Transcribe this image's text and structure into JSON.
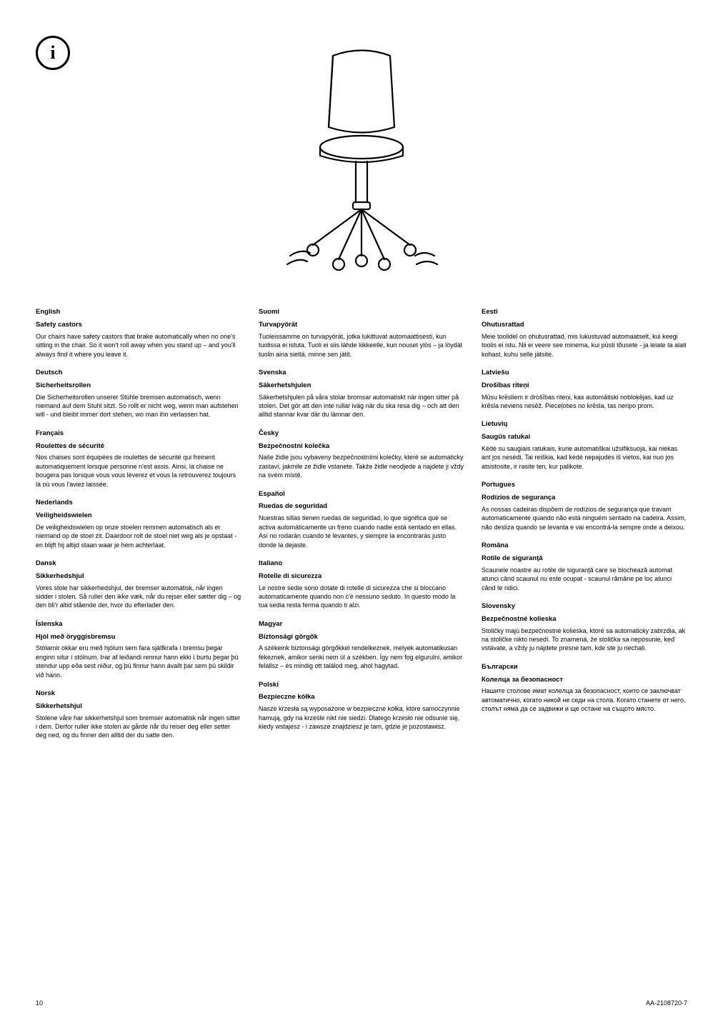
{
  "info_icon_glyph": "i",
  "footer": {
    "page": "10",
    "code": "AA-2108720-7"
  },
  "columns": [
    [
      {
        "lang": "English",
        "heading": "Safety castors",
        "text": "Our chairs have safety castors that brake automatically when no one's sitting in the chair. So it won't roll away when you stand up – and you'll always find it where you leave it."
      },
      {
        "lang": "Deutsch",
        "heading": "Sicherheitsrollen",
        "text": "Die Sicherheitsrollen unserer Stühle bremsen automatisch, wenn niemand auf dem Stuhl sitzt. So rollt er nicht weg, wenn man aufstehen will - und bleibt immer dort stehen, wo man ihn verlassen hat."
      },
      {
        "lang": "Français",
        "heading": "Roulettes de sécurité",
        "text": "Nos chaises sont équipées de roulettes de sécurité qui freinent automatiquement lorsque personne n'est assis. Ainsi, la chaise ne bougera pas lorsque vous vous lèverez et vous la retrouverez toujours là où vous l'aviez laissée."
      },
      {
        "lang": "Nederlands",
        "heading": "Veiligheidswielen",
        "text": "De veiligheidswielen op onze stoelen remmen automatisch als er niemand op de stoel zit. Daardoor rolt de stoel niet weg als je opstaat - en blijft hij altijd staan waar je hem achterlaat."
      },
      {
        "lang": "Dansk",
        "heading": "Sikkerhedshjul",
        "text": "Vores stole har sikkerhedshjul, der bremser automatisk, når ingen sidder i stolen. Så ruller den ikke væk, når du rejser eller sætter dig – og den bli'r altid stående der, hvor du efterlader den."
      },
      {
        "lang": "Íslenska",
        "heading": "Hjól með öryggisbremsu",
        "text": "Stólarnir okkar eru með hjólum sem fara sjálfkrafa í bremsu þegar enginn situr í stólnum. Þar af leiðandi rennur hann ekki í burtu þegar þú stendur upp eða sest niður, og þú finnur hann ávallt þar sem þú skildir við hann."
      },
      {
        "lang": "Norsk",
        "heading": "Sikkerhetshjul",
        "text": "Stolene våre har sikkerhetshjul som bremser automatisk når ingen sitter i dem. Derfor ruller ikke stolen av gårde når du reiser deg eller setter deg ned, og du finner den alltid der du satte den."
      }
    ],
    [
      {
        "lang": "Suomi",
        "heading": "Turvapyörät",
        "text": "Tuoleissamme on turvapyörät, jotka lukittuvat automaattisesti, kun tuolissa ei istuta. Tuoli ei siis lähde liikkeelle, kun nouset ylös – ja löydät tuolin aina sieltä, minne sen jätit."
      },
      {
        "lang": "Svenska",
        "heading": "Säkerhetshjulen",
        "text": "Säkerhetshjulen på våra stolar bromsar automatiskt när ingen sitter på stolen. Det gör att den inte rullar iväg när du ska resa dig – och att den alltid stannar kvar där du lämnar den."
      },
      {
        "lang": "Česky",
        "heading": "Bezpečnostní kolečka",
        "text": "Naše židle jsou vybaveny bezpečnostními kolečky, které se automaticky zastaví, jakmile ze židle vstanete. Takže židle neodjede a najdete ji vždy na svém místě."
      },
      {
        "lang": "Español",
        "heading": "Ruedas de seguridad",
        "text": "Nuestras sillas tienen ruedas de seguridad, lo que significa que se activa automáticamente un freno cuando nadie está sentado en ellas. Así no rodarán cuando te levantes, y siempre la encontrarás justo donde la dejaste."
      },
      {
        "lang": "Italiano",
        "heading": "Rotelle di sicurezza",
        "text": "Le nostre sedie sono dotate di rotelle di sicurezza che si bloccano automaticamente quando non c'è nessuno seduto. In questo modo la tua sedia resta ferma quando ti alzi."
      },
      {
        "lang": "Magyar",
        "heading": "Biztonsági görgők",
        "text": "A székeink biztonsági görgőkkel rendelkeznek, melyek automatikusan fékeznek, amikor senki nem ül a székben. Így nem fog elgurulni, amikor felállsz – és mindig ott találod meg, ahol hagytad."
      },
      {
        "lang": "Polski",
        "heading": "Bezpieczne kółka",
        "text": "Nasze krzesła są wyposażone w bezpieczne kółka, które samoczynnie hamują, gdy na krześle nikt nie siedzi. Dlatego krzesło nie odsunie się, kiedy wstajesz - i zawsze znajdziesz je tam, gdzie je pozostawisz."
      }
    ],
    [
      {
        "lang": "Eesti",
        "heading": "Ohutusrattad",
        "text": "Meie toolidel on ohutusrattad, mis lukustuvad automaatselt, kui keegi toolis ei istu. Nii ei veere see minema, kui püsti tõusete - ja leiate ta alati kohast, kuhu selle jätsite."
      },
      {
        "lang": "Latviešu",
        "heading": "Drošības riteņi",
        "text": "Mūsu krēsliem ir drošības riteņi, kas automātiski nobloķējas, kad uz krēsla neviens nesēž. Pieceļoties no krēsla, tas neripo prom."
      },
      {
        "lang": "Lietuvių",
        "heading": "Saugūs ratukai",
        "text": "Kėdė su saugiais ratukais, kurie automatiškai užsifiksuoja, kai niekas ant jos nesėdi. Tai reiškia, kad kėdė nepajudės iš vietos, kai nuo jos atsistosite, ir rasite ten, kur palikote."
      },
      {
        "lang": "Portugues",
        "heading": "Rodízios de segurança",
        "text": "As nossas cadeiras dispõem de rodízios de segurança que travam automaticamente quando não está ninguém sentado na cadeira. Assim, não desliza quando se levanta e vai encontrá-la sempre onde a deixou."
      },
      {
        "lang": "Româna",
        "heading": "Rotile de siguranţă",
        "text": "Scaunele noastre au rotile de siguranţă care se blochează automat atunci când scaunul nu este ocupat - scaunul rămâne pe loc atunci când te ridici."
      },
      {
        "lang": "Slovensky",
        "heading": "Bezpečnostné kolieska",
        "text": "Stoličky majú bezpečnostné kolieska, ktoré sa automaticky zabrzdia, ak na stoličke nikto nesedí. To znamená, že stolička sa neposunie, keď vstávate, a vždy ju nájdete presne tam, kde ste ju nechali."
      },
      {
        "lang": "Български",
        "heading": "Колелца за безопасност",
        "text": "Нашите столове имат колелца за безопасност, които се заключват автоматично, когато никой не седи на стола. Когато станете от него, столът няма да се задвижи и ще остане на същото място."
      }
    ]
  ]
}
